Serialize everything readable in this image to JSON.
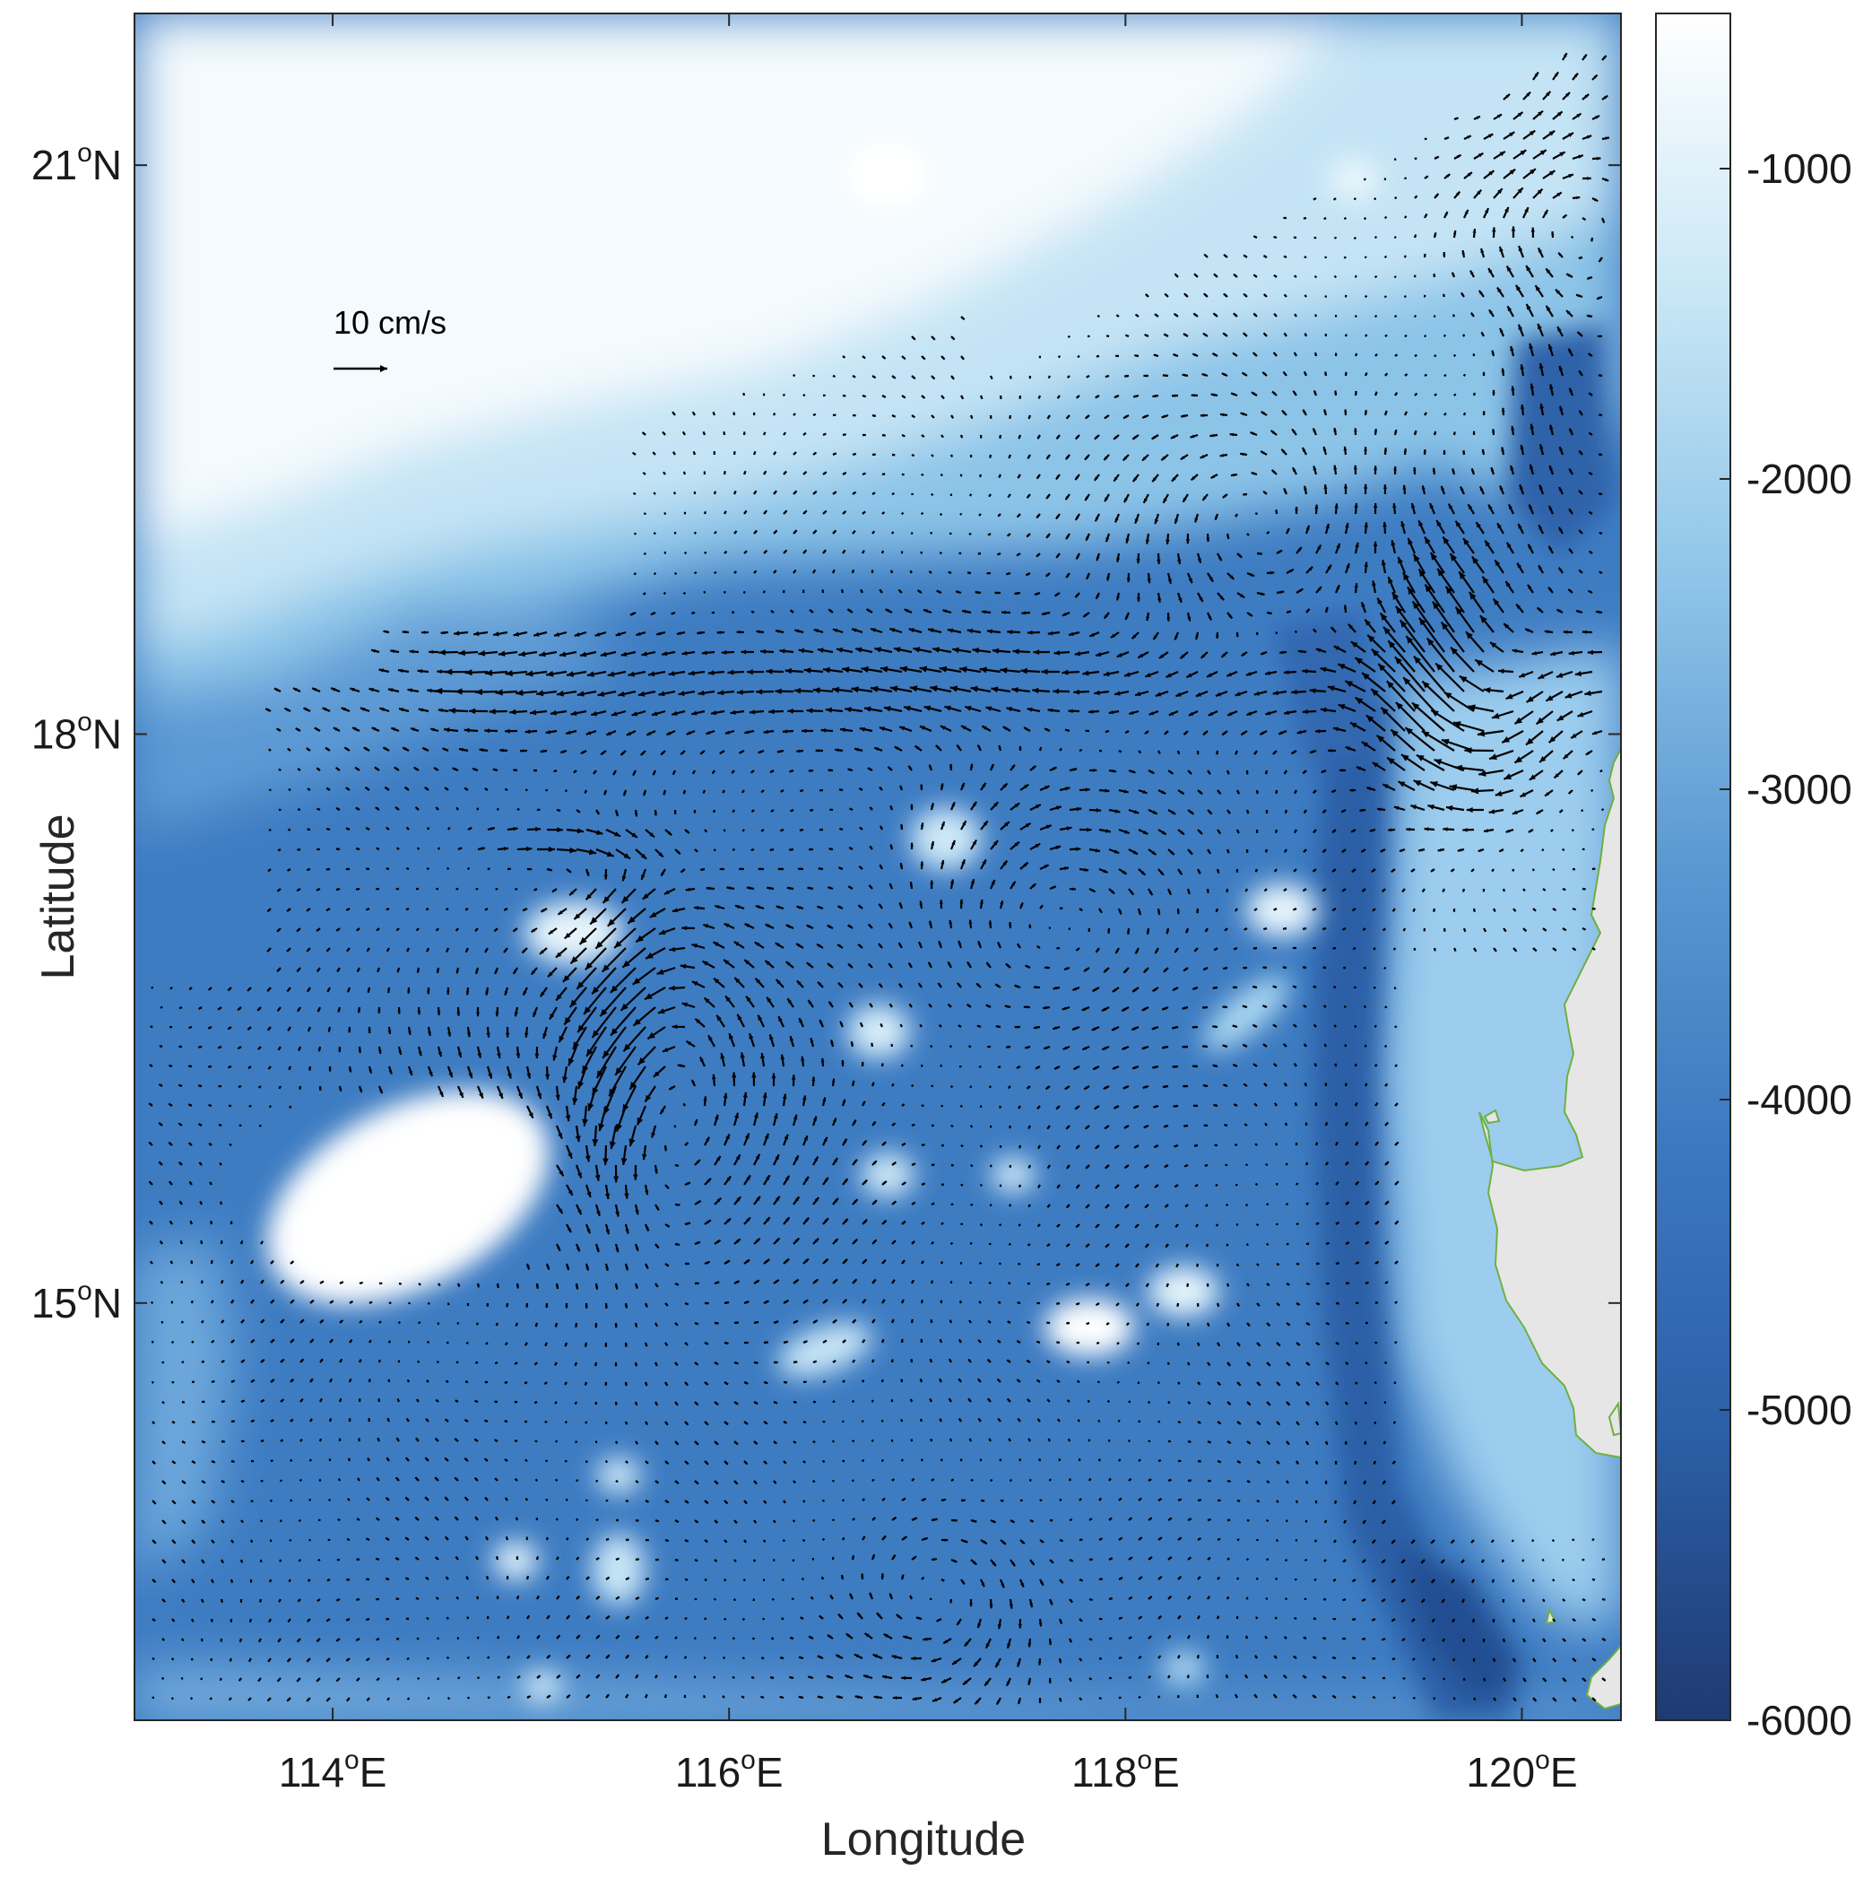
{
  "chart_data": {
    "type": "map-quiver",
    "xlabel": "Longitude",
    "ylabel": "Latitude",
    "xlim": [
      113.0,
      120.5
    ],
    "ylim": [
      12.8,
      21.8
    ],
    "xticks": [
      {
        "value": 114,
        "num": "114",
        "sup": "o",
        "hem": "E"
      },
      {
        "value": 116,
        "num": "116",
        "sup": "o",
        "hem": "E"
      },
      {
        "value": 118,
        "num": "118",
        "sup": "o",
        "hem": "E"
      },
      {
        "value": 120,
        "num": "120",
        "sup": "o",
        "hem": "E"
      }
    ],
    "yticks": [
      {
        "value": 21,
        "num": "21",
        "sup": "o",
        "hem": "N"
      },
      {
        "value": 18,
        "num": "18",
        "sup": "o",
        "hem": "N"
      },
      {
        "value": 15,
        "num": "15",
        "sup": "o",
        "hem": "N"
      }
    ],
    "colorbar": {
      "range": [
        -6000,
        -500
      ],
      "ticks": [
        {
          "value": -1000,
          "label": "-1000"
        },
        {
          "value": -2000,
          "label": "-2000"
        },
        {
          "value": -3000,
          "label": "-3000"
        },
        {
          "value": -4000,
          "label": "-4000"
        },
        {
          "value": -5000,
          "label": "-5000"
        },
        {
          "value": -6000,
          "label": "-6000"
        }
      ],
      "colors": [
        "#1f3a73",
        "#2b5fa6",
        "#3c78bf",
        "#5a98d2",
        "#8ec4e8",
        "#c7e6f5",
        "#ffffff"
      ]
    },
    "scale_arrow": {
      "label": "10 cm/s",
      "speed": 10
    },
    "colors": {
      "land": "#e6e6e6",
      "coastline": "#6fb040",
      "arrow": "#000000",
      "axes": "#262626"
    }
  }
}
